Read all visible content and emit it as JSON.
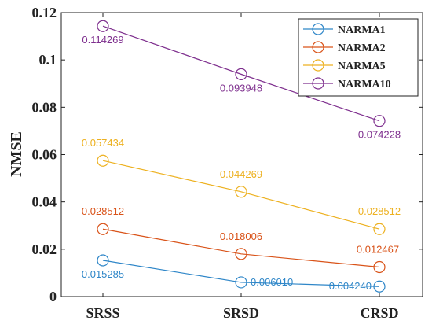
{
  "chart_data": {
    "type": "line",
    "categories": [
      "SRSS",
      "SRSD",
      "CRSD"
    ],
    "ylabel": "NMSE",
    "ylim": [
      0,
      0.12
    ],
    "yticks": [
      0,
      0.02,
      0.04,
      0.06,
      0.08,
      0.1,
      0.12
    ],
    "ytick_labels": [
      "0",
      "0.02",
      "0.04",
      "0.06",
      "0.08",
      "0.1",
      "0.12"
    ],
    "grid": false,
    "legend_position": "top-right",
    "marker": "open-circle",
    "series": [
      {
        "name": "NARMA1",
        "color": "#2e86c8",
        "values": [
          0.015285,
          0.00601,
          0.00424
        ],
        "labels": [
          "0.015285",
          "0.006010",
          "0.004240"
        ]
      },
      {
        "name": "NARMA2",
        "color": "#d95319",
        "values": [
          0.028512,
          0.018006,
          0.012467
        ],
        "labels": [
          "0.028512",
          "0.018006",
          "0.012467"
        ]
      },
      {
        "name": "NARMA5",
        "color": "#edb120",
        "values": [
          0.057434,
          0.044269,
          0.028512
        ],
        "labels": [
          "0.057434",
          "0.044269",
          "0.028512"
        ]
      },
      {
        "name": "NARMA10",
        "color": "#7e2f8e",
        "values": [
          0.114269,
          0.093948,
          0.074228
        ],
        "labels": [
          "0.114269",
          "0.093948",
          "0.074228"
        ]
      }
    ]
  }
}
